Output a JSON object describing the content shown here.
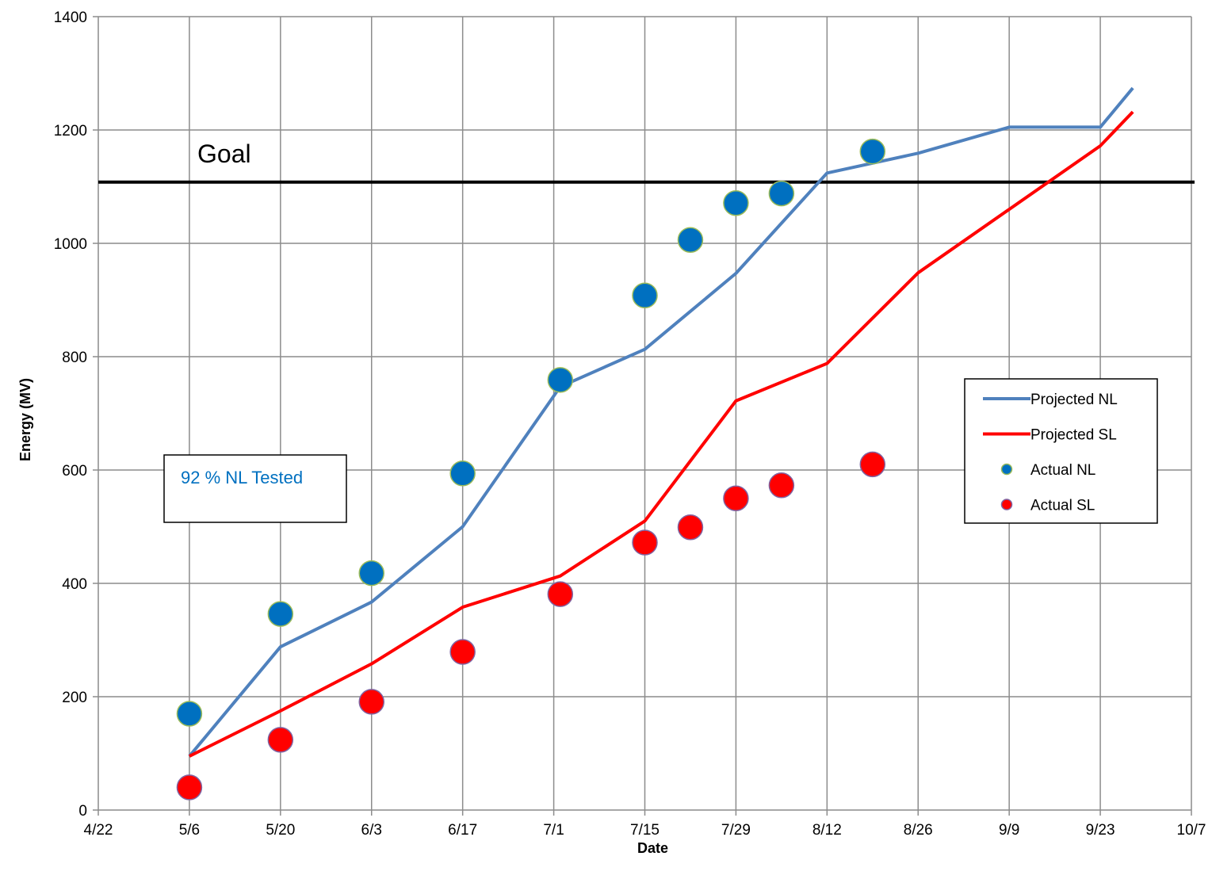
{
  "chart_data": {
    "type": "line",
    "xlabel": "Date",
    "ylabel": "Energy (MV)",
    "x_tick_labels": [
      "4/22",
      "5/6",
      "5/20",
      "6/3",
      "6/17",
      "7/1",
      "7/15",
      "7/29",
      "8/12",
      "8/26",
      "9/9",
      "9/23",
      "10/7"
    ],
    "x_tick_days": [
      0,
      14,
      28,
      42,
      56,
      70,
      84,
      98,
      112,
      126,
      140,
      154,
      168
    ],
    "xlim_days": [
      0,
      168
    ],
    "y_ticks": [
      0,
      200,
      400,
      600,
      800,
      1000,
      1200,
      1400
    ],
    "ylim": [
      0,
      1400
    ],
    "grid": true,
    "legend_position": "right",
    "goal": {
      "label": "Goal",
      "value": 1108
    },
    "annotation": {
      "text": "92 % NL Tested"
    },
    "colors": {
      "projected_nl": "#4f81bd",
      "projected_sl": "#ff0000",
      "actual_nl": "#0070c0",
      "actual_nl_edge": "#9bbb59",
      "actual_sl": "#ff0000",
      "actual_sl_edge": "#8064a2",
      "goal": "#000000",
      "grid": "#8c8c8c",
      "annotation": "#0070c0"
    },
    "series": [
      {
        "name": "Projected NL",
        "kind": "line",
        "x_days": [
          14,
          28,
          42,
          56,
          71,
          84,
          98,
          112,
          126,
          140,
          154,
          159
        ],
        "y": [
          95,
          288,
          367,
          500,
          747,
          813,
          947,
          1124,
          1159,
          1205,
          1205,
          1274
        ]
      },
      {
        "name": "Projected SL",
        "kind": "line",
        "x_days": [
          14,
          28,
          42,
          56,
          71,
          84,
          98,
          112,
          126,
          140,
          154,
          159
        ],
        "y": [
          95,
          175,
          258,
          358,
          413,
          510,
          722,
          788,
          948,
          1060,
          1172,
          1232
        ]
      },
      {
        "name": "Actual  NL",
        "kind": "scatter",
        "x_days": [
          14,
          28,
          42,
          56,
          71,
          84,
          91,
          98,
          105,
          119
        ],
        "y": [
          170,
          346,
          418,
          594,
          759,
          908,
          1006,
          1071,
          1088,
          1162
        ]
      },
      {
        "name": "Actual SL",
        "kind": "scatter",
        "x_days": [
          14,
          28,
          42,
          56,
          71,
          84,
          91,
          98,
          105,
          119
        ],
        "y": [
          40,
          124,
          191,
          279,
          381,
          472,
          499,
          550,
          573,
          610
        ]
      }
    ]
  }
}
